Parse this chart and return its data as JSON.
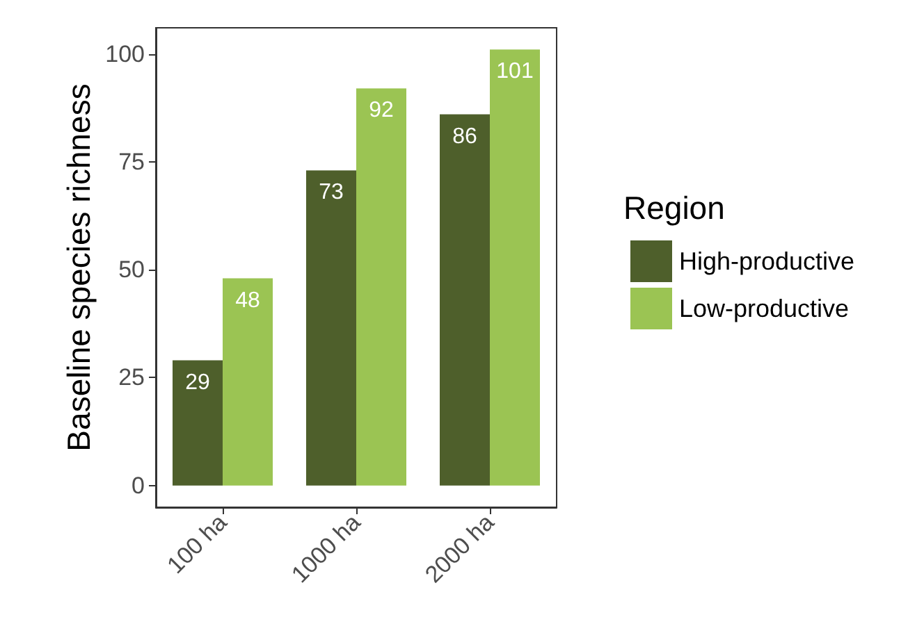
{
  "chart_data": {
    "type": "bar",
    "ylabel": "Baseline species richness",
    "legend_title": "Region",
    "categories": [
      "100 ha",
      "1000 ha",
      "2000 ha"
    ],
    "series": [
      {
        "name": "High-productive",
        "color": "#4e5f2b",
        "values": [
          29,
          73,
          86
        ]
      },
      {
        "name": "Low-productive",
        "color": "#9bc453",
        "values": [
          48,
          92,
          101
        ]
      }
    ],
    "ylim": [
      -5.05,
      106.05
    ],
    "yticks": [
      0,
      25,
      50,
      75,
      100
    ],
    "grid": false,
    "legend": "right",
    "data_labels": true
  }
}
